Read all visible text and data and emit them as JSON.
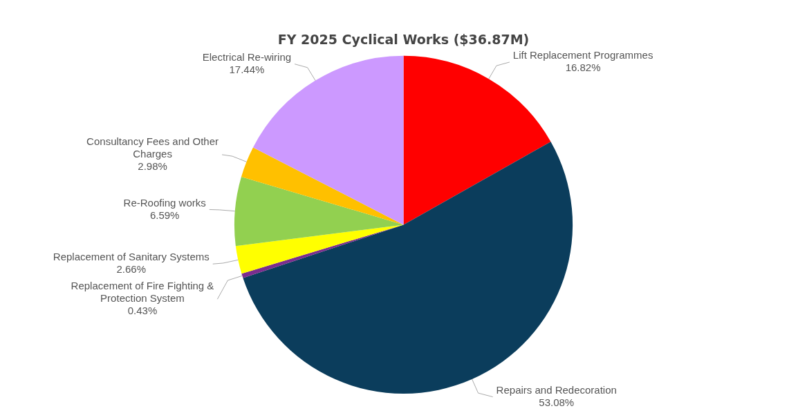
{
  "chart_data": {
    "type": "pie",
    "title": "FY 2025 Cyclical Works ($36.87M)",
    "categories": [
      "Lift Replacement Programmes",
      "Repairs and Redecoration",
      "Replacement of Fire Fighting & Protection System",
      "Replacement of Sanitary Systems",
      "Re-Roofing works",
      "Consultancy Fees and Other Charges",
      "Electrical Re-wiring"
    ],
    "values": [
      16.82,
      53.08,
      0.43,
      2.66,
      6.59,
      2.98,
      17.44
    ],
    "value_labels": [
      "16.82%",
      "53.08%",
      "0.43%",
      "2.66%",
      "6.59%",
      "2.98%",
      "17.44%"
    ],
    "colors": [
      "#ff0000",
      "#0b3d5c",
      "#7b2d8e",
      "#ffff00",
      "#92d050",
      "#ffc000",
      "#cc99ff"
    ],
    "legend": false
  }
}
